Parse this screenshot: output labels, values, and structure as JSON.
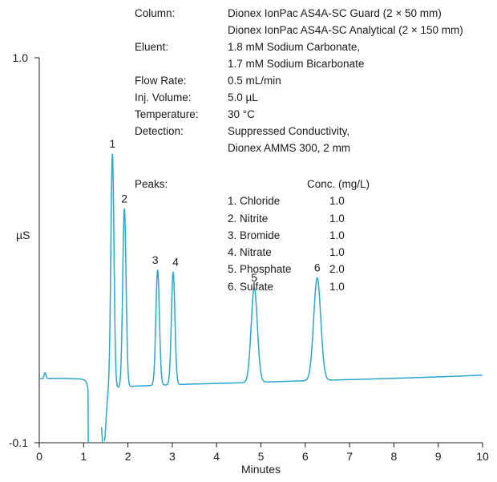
{
  "conditions": [
    {
      "label": "Column:",
      "lines": [
        "Dionex IonPac AS4A-SC Guard (2 × 50 mm)",
        "Dionex IonPac AS4A-SC Analytical (2 × 150 mm)"
      ]
    },
    {
      "label": "Eluent:",
      "lines": [
        "1.8 mM Sodium Carbonate,",
        "1.7 mM Sodium Bicarbonate"
      ]
    },
    {
      "label": "Flow Rate:",
      "lines": [
        "0.5 mL/min"
      ]
    },
    {
      "label": "Inj. Volume:",
      "lines": [
        "5.0 µL"
      ]
    },
    {
      "label": "Temperature:",
      "lines": [
        "30 °C"
      ]
    },
    {
      "label": "Detection:",
      "lines": [
        "Suppressed Conductivity,",
        "Dionex AMMS 300, 2 mm"
      ]
    }
  ],
  "peaks_table": {
    "label": "Peaks:",
    "conc_header": "Conc. (mg/L)",
    "rows": [
      {
        "name": "1. Chloride",
        "conc": "1.0"
      },
      {
        "name": "2. Nitrite",
        "conc": "1.0"
      },
      {
        "name": "3. Bromide",
        "conc": "1.0"
      },
      {
        "name": "4. Nitrate",
        "conc": "1.0"
      },
      {
        "name": "5. Phosphate",
        "conc": "2.0"
      },
      {
        "name": "6. Sulfate",
        "conc": "1.0"
      }
    ]
  },
  "chart_data": {
    "type": "line",
    "xlabel": "Minutes",
    "ylabel": "µS",
    "xlim": [
      0,
      10
    ],
    "ylim": [
      -0.1,
      1.0
    ],
    "x_ticks": [
      "0",
      "1",
      "2",
      "3",
      "4",
      "5",
      "6",
      "7",
      "8",
      "9",
      "10"
    ],
    "y_ticks": [
      "-0.1",
      "1.0"
    ],
    "line_color": "#2aa6cf",
    "baseline": {
      "x": [
        0.0,
        0.5,
        0.95,
        1.6,
        2.2,
        3.3,
        4.5,
        6.0,
        7.5,
        9.0,
        10.0
      ],
      "y": [
        0.083,
        0.084,
        0.082,
        0.056,
        0.062,
        0.067,
        0.071,
        0.077,
        0.082,
        0.088,
        0.093
      ]
    },
    "peaks": [
      {
        "label": "1",
        "time": 1.65,
        "height": 0.725
      },
      {
        "label": "2",
        "time": 1.92,
        "height": 0.568
      },
      {
        "label": "3",
        "time": 2.67,
        "height": 0.393
      },
      {
        "label": "4",
        "time": 3.02,
        "height": 0.387
      },
      {
        "label": "5",
        "time": 4.85,
        "height": 0.342
      },
      {
        "label": "6",
        "time": 6.27,
        "height": 0.371
      }
    ],
    "features": [
      {
        "time": 0.13,
        "height": 0.1
      },
      {
        "time": 0.35,
        "height": 0.084
      },
      {
        "time": 1.22,
        "height": -0.114
      },
      {
        "time": 1.45,
        "height": -0.115
      }
    ]
  }
}
